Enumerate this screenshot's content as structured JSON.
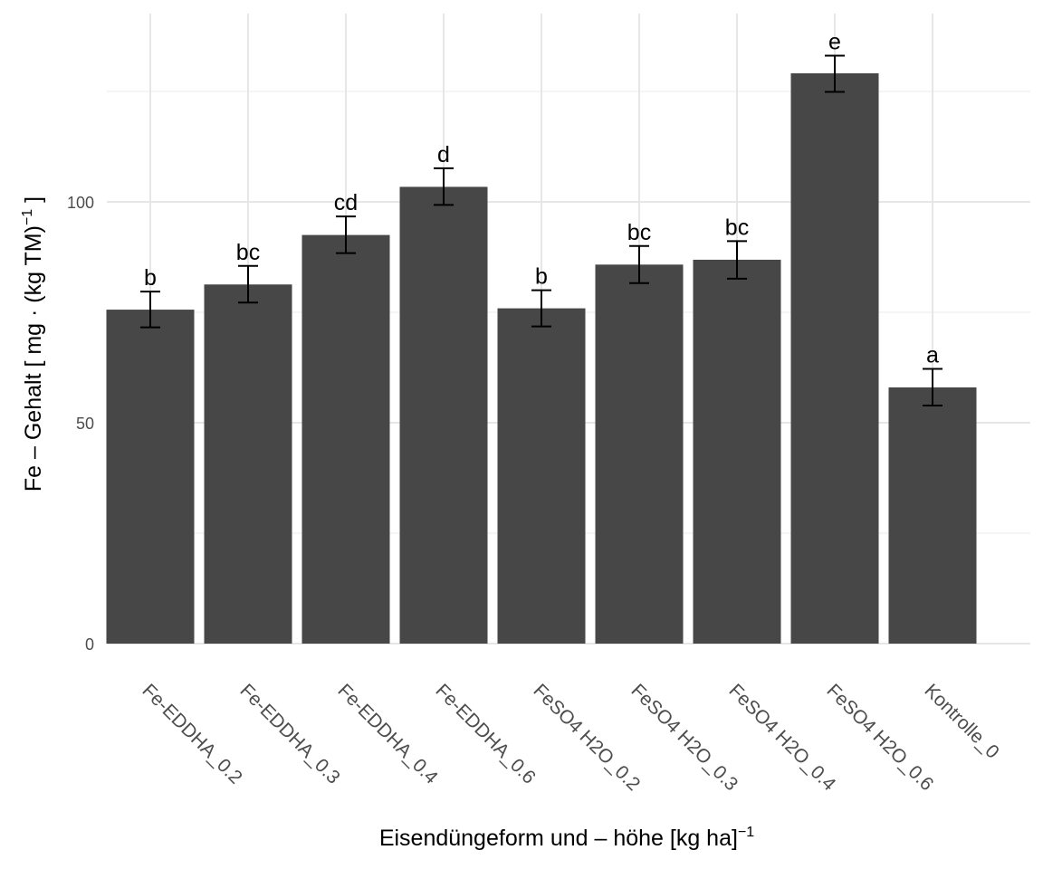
{
  "chart_data": {
    "type": "bar",
    "categories": [
      "Fe-EDDHA_0.2",
      "Fe-EDDHA_0.3",
      "Fe-EDDHA_0.4",
      "Fe-EDDHA_0.6",
      "FeSO4 H2O_0.2",
      "FeSO4 H2O_0.3",
      "FeSO4 H2O_0.4",
      "FeSO4 H2O_0.6",
      "Kontrolle_0"
    ],
    "values": [
      75.6,
      81.3,
      92.5,
      103.4,
      75.9,
      85.8,
      86.9,
      129.1,
      58.0
    ],
    "error_low": [
      71.6,
      77.2,
      88.4,
      99.3,
      71.8,
      81.6,
      82.6,
      124.9,
      53.9
    ],
    "error_high": [
      79.7,
      85.5,
      96.7,
      107.6,
      80.0,
      90.0,
      91.1,
      133.1,
      62.2
    ],
    "significance_labels": [
      "b",
      "bc",
      "cd",
      "d",
      "b",
      "bc",
      "bc",
      "e",
      "a"
    ],
    "ylim": [
      0,
      140
    ],
    "yticks": [
      0,
      50,
      100
    ],
    "xlabel": {
      "main": "Eisendüngeform und – höhe [kg ha]",
      "superscript": "−1"
    },
    "ylabel": {
      "main": "Fe – Gehalt [ mg · (kg TM)",
      "superscript": "−1",
      "tail": " ]"
    },
    "grid": true,
    "bar_color": "#474747"
  }
}
